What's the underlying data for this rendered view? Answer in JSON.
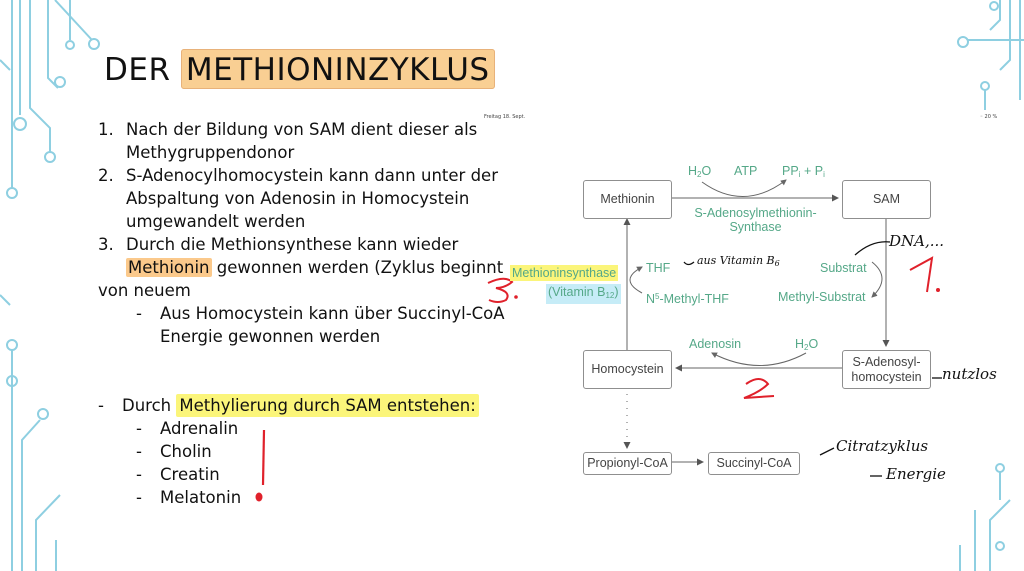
{
  "title": {
    "prefix": "DER ",
    "highlight": "METHIONINZYKLUS"
  },
  "numbered_list": [
    {
      "num": "1.",
      "lines": [
        "Nach der Bildung von SAM dient dieser als",
        "Methygruppendonor"
      ]
    },
    {
      "num": "2.",
      "lines": [
        "S-Adenocylhomocystein kann dann unter der",
        "Abspaltung von Adenosin in Homocystein",
        "umgewandelt werden"
      ]
    },
    {
      "num": "3.",
      "line1": "Durch die Methionsynthese kann wieder",
      "line2_highlight": "Methionin",
      "line2_rest": " gewonnen werden (Zyklus beginnt",
      "line3": "von neuem"
    }
  ],
  "sub_bullet": {
    "dash": "-",
    "lines": [
      "Aus Homocystein kann über Succinyl-CoA",
      "Energie gewonnen werden"
    ]
  },
  "methylation": {
    "dash": "-",
    "prefix": "Durch ",
    "highlight": "Methylierung durch SAM entstehen:",
    "items": [
      "Adrenalin",
      "Cholin",
      "Creatin",
      "Melatonin"
    ]
  },
  "tablet_status": {
    "date": "Freitag 18. Sept.",
    "battery": "20 %"
  },
  "diagram": {
    "boxes": {
      "methionin": "Methionin",
      "sam": "SAM",
      "homocystein": "Homocystein",
      "s_adenosyl_l1": "S-Adenosyl-",
      "s_adenosyl_l2": "homocystein",
      "propionyl": "Propionyl-CoA",
      "succinyl": "Succinyl-CoA"
    },
    "top_labels": {
      "h2o": "H",
      "h2o_sub": "2",
      "h2o_o": "O",
      "atp": "ATP",
      "ppi": "PP",
      "ppi_sub": "i",
      "ppi_plus": " + P",
      "ppi_sub2": "i"
    },
    "enzyme_top_l1": "S-Adenosylmethionin-",
    "enzyme_top_l2": "Synthase",
    "left": {
      "thf": "THF",
      "methyl_thf_sup": "5",
      "methyl_thf_pre": "N",
      "methyl_thf_rest": "-Methyl-THF"
    },
    "left_enzyme": {
      "name": "Methioninsynthase",
      "vitamin_pre": "(Vitamin B",
      "vitamin_sub": "12",
      "vitamin_post": ")"
    },
    "right": {
      "substrat": "Substrat",
      "methyl_substrat": "Methyl-Substrat"
    },
    "bottom": {
      "adenosin": "Adenosin",
      "h2o": "H",
      "h2o_sub": "2",
      "h2o_o": "O"
    }
  },
  "annotations": {
    "aus_vitamin": "aus Vitamin B",
    "aus_vitamin_sub": "6",
    "dna": "DNA,...",
    "one": "1.",
    "two": "2",
    "three": "3.",
    "nutzlos": "nutzlos",
    "citratzyklus": "Citratzyklus",
    "energie": "Energie"
  },
  "colors": {
    "green": "#55a888",
    "red": "#e0212b",
    "orange_highlight": "#f9cf93",
    "yellow_highlight": "#fbf57a",
    "blue_highlight": "#c6ecf7",
    "deco": "#8ecfe1"
  }
}
